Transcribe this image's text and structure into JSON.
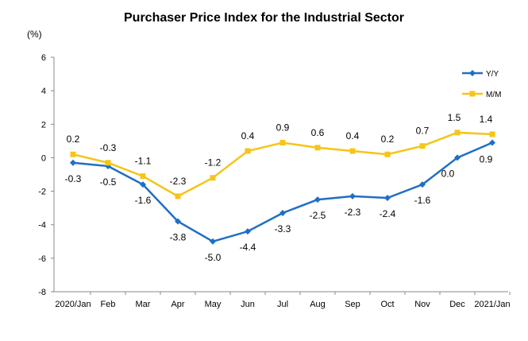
{
  "chart_data": {
    "type": "line",
    "title": "Purchaser Price Index for the Industrial  Sector",
    "ylabel": "(%)",
    "xlabel": "",
    "ylim": [
      -8,
      6
    ],
    "yticks": [
      6,
      4,
      2,
      0,
      -2,
      -4,
      -6,
      -8
    ],
    "categories": [
      "2020/Jan",
      "Feb",
      "Mar",
      "Apr",
      "May",
      "Jun",
      "Jul",
      "Aug",
      "Sep",
      "Oct",
      "Nov",
      "Dec",
      "2021/Jan"
    ],
    "series": [
      {
        "name": "Y/Y",
        "color": "#1f6fc5",
        "marker": "diamond",
        "values": [
          -0.3,
          -0.5,
          -1.6,
          -3.8,
          -5.0,
          -4.4,
          -3.3,
          -2.5,
          -2.3,
          -2.4,
          -1.6,
          0.0,
          0.9
        ],
        "labels": [
          "-0.3",
          "-0.5",
          "-1.6",
          "-3.8",
          "-5.0",
          "-4.4",
          "-3.3",
          "-2.5",
          "-2.3",
          "-2.4",
          "-1.6",
          "0.0",
          "0.9"
        ]
      },
      {
        "name": "M/M",
        "color": "#f5c518",
        "marker": "square",
        "values": [
          0.2,
          -0.3,
          -1.1,
          -2.3,
          -1.2,
          0.4,
          0.9,
          0.6,
          0.4,
          0.2,
          0.7,
          1.5,
          1.4
        ],
        "labels": [
          "0.2",
          "-0.3",
          "-1.1",
          "-2.3",
          "-1.2",
          "0.4",
          "0.9",
          "0.6",
          "0.4",
          "0.2",
          "0.7",
          "1.5",
          "1.4"
        ]
      }
    ],
    "grid": false,
    "legend_position": "top-right"
  }
}
